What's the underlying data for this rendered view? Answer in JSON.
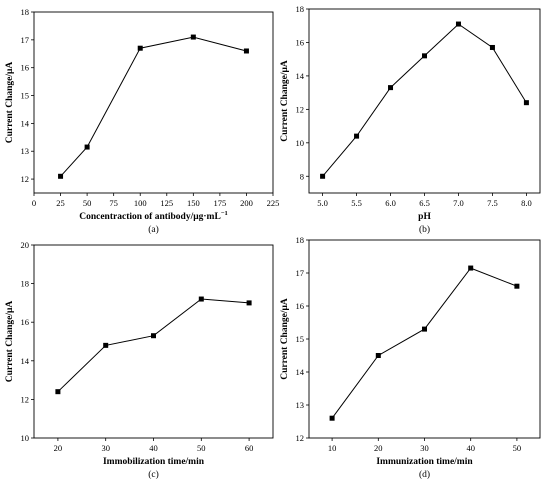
{
  "chart_data": [
    {
      "type": "line",
      "xlabel": "Concentraction of antibody/μg·mL",
      "xlabel_sup": "−1",
      "ylabel": "Current Change/μA",
      "caption": "(a)",
      "xlim": [
        0,
        225
      ],
      "ylim": [
        11.5,
        18
      ],
      "xticks": [
        "0",
        "25",
        "50",
        "75",
        "100",
        "125",
        "150",
        "175",
        "200",
        "225"
      ],
      "yticks": [
        "12",
        "13",
        "14",
        "15",
        "16",
        "17",
        "18"
      ],
      "x": [
        25,
        50,
        100,
        150,
        200
      ],
      "y": [
        12.1,
        13.15,
        16.7,
        17.1,
        16.6
      ],
      "grid": false
    },
    {
      "type": "line",
      "xlabel": "pH",
      "ylabel": "Current Change/μA",
      "caption": "(b)",
      "xlim": [
        4.8,
        8.2
      ],
      "ylim": [
        7,
        18
      ],
      "xticks": [
        "5.0",
        "5.5",
        "6.0",
        "6.5",
        "7.0",
        "7.5",
        "8.0"
      ],
      "yticks": [
        "8",
        "10",
        "12",
        "14",
        "16",
        "18"
      ],
      "x": [
        5.0,
        5.5,
        6.0,
        6.5,
        7.0,
        7.5,
        8.0
      ],
      "y": [
        8.0,
        10.4,
        13.3,
        15.2,
        17.1,
        15.7,
        12.4
      ],
      "grid": false
    },
    {
      "type": "line",
      "xlabel": "Immobilization time/min",
      "ylabel": "Current Change/μA",
      "caption": "(c)",
      "xlim": [
        15,
        65
      ],
      "ylim": [
        10,
        20
      ],
      "xticks": [
        "20",
        "30",
        "40",
        "50",
        "60"
      ],
      "yticks": [
        "10",
        "12",
        "14",
        "16",
        "18",
        "20"
      ],
      "x": [
        20,
        30,
        40,
        50,
        60
      ],
      "y": [
        12.4,
        14.8,
        15.3,
        17.2,
        17.0
      ],
      "grid": false
    },
    {
      "type": "line",
      "xlabel": "Immunization time/min",
      "ylabel": "Current Change/μA",
      "caption": "(d)",
      "xlim": [
        5,
        55
      ],
      "ylim": [
        12,
        18
      ],
      "xticks": [
        "10",
        "20",
        "30",
        "40",
        "50"
      ],
      "yticks": [
        "12",
        "13",
        "14",
        "15",
        "16",
        "17",
        "18"
      ],
      "x": [
        10,
        20,
        30,
        40,
        50
      ],
      "y": [
        12.6,
        14.5,
        15.3,
        17.15,
        16.6
      ],
      "grid": false
    }
  ]
}
